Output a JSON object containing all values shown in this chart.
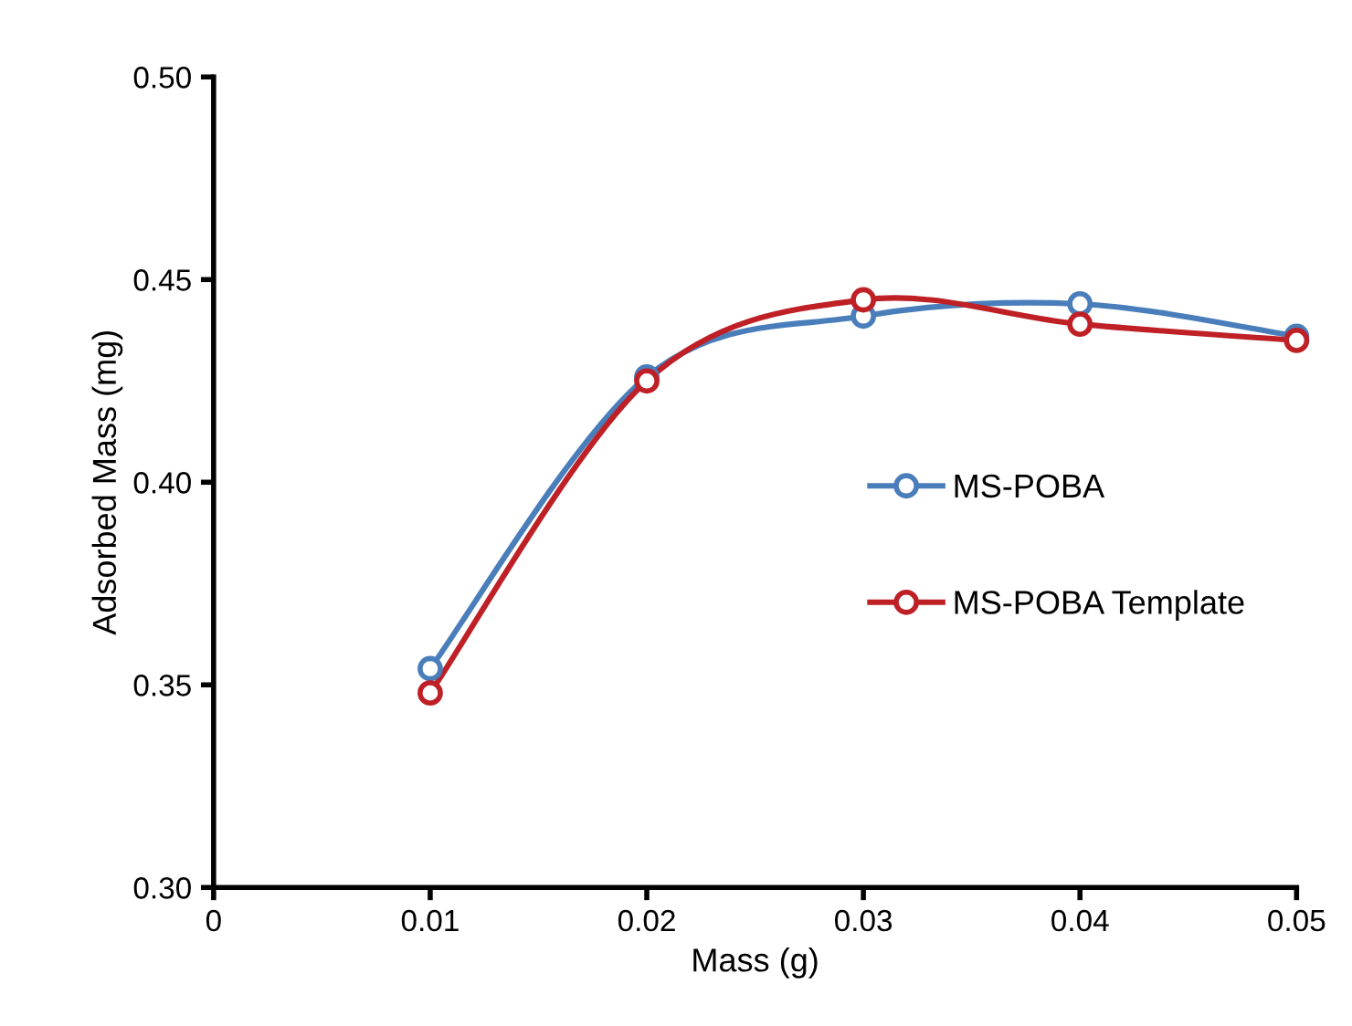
{
  "chart_data": {
    "type": "line",
    "xlabel": "Mass (g)",
    "ylabel": "Adsorbed Mass (mg)",
    "x": [
      0.01,
      0.02,
      0.03,
      0.04,
      0.05
    ],
    "series": [
      {
        "name": "MS-POBA",
        "color": "#4a7ebb",
        "values": [
          0.354,
          0.426,
          0.441,
          0.444,
          0.436
        ]
      },
      {
        "name": "MS-POBA Template",
        "color": "#be2026",
        "values": [
          0.348,
          0.425,
          0.445,
          0.439,
          0.435
        ]
      }
    ],
    "xlim": [
      0,
      0.05
    ],
    "xticks": [
      {
        "value": 0,
        "label": "0"
      },
      0.01,
      0.02,
      0.03,
      0.04,
      0.05
    ],
    "ylim": [
      0.3,
      0.5
    ],
    "yticks": [
      {
        "value": 0.3,
        "label": "0.30"
      },
      {
        "value": 0.35,
        "label": "0.35"
      },
      {
        "value": 0.4,
        "label": "0.40"
      },
      {
        "value": 0.45,
        "label": "0.45"
      },
      {
        "value": 0.5,
        "label": "0.50"
      }
    ],
    "grid": false,
    "legend": "right",
    "marker": "circle",
    "line_style": "solid"
  }
}
